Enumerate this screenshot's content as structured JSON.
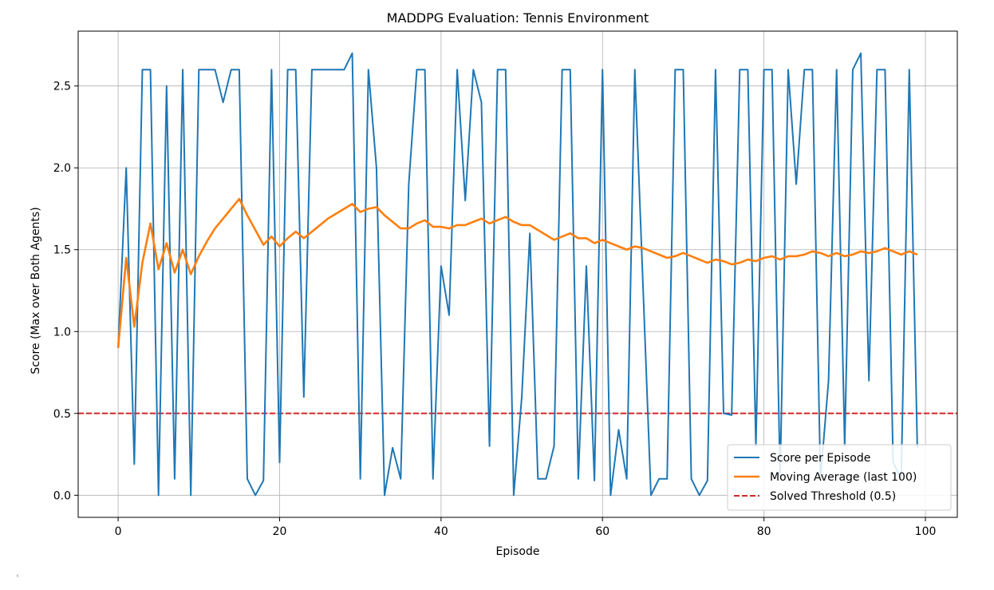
{
  "chart_data": {
    "type": "line",
    "title": "MADDPG Evaluation: Tennis Environment",
    "xlabel": "Episode",
    "ylabel": "Score (Max over Both Agents)",
    "xlim": [
      -4.95,
      103.95
    ],
    "ylim": [
      -0.135,
      2.835
    ],
    "xticks": [
      0,
      20,
      40,
      60,
      80,
      100
    ],
    "yticks": [
      0.0,
      0.5,
      1.0,
      1.5,
      2.0,
      2.5
    ],
    "xtick_labels": [
      "0",
      "20",
      "40",
      "60",
      "80",
      "100"
    ],
    "ytick_labels": [
      "0.0",
      "0.5",
      "1.0",
      "1.5",
      "2.0",
      "2.5"
    ],
    "grid": true,
    "legend_position": "lower-right",
    "series": [
      {
        "name": "Score per Episode",
        "color": "#1f77b4",
        "values": [
          0.9,
          2.0,
          0.19,
          2.6,
          2.6,
          0.0,
          2.5,
          0.1,
          2.6,
          0.0,
          2.6,
          2.6,
          2.6,
          2.4,
          2.6,
          2.6,
          0.1,
          0.0,
          0.09,
          2.6,
          0.2,
          2.6,
          2.6,
          0.6,
          2.6,
          2.6,
          2.6,
          2.6,
          2.6,
          2.7,
          0.1,
          2.6,
          2.0,
          0.0,
          0.29,
          0.1,
          1.9,
          2.6,
          2.6,
          0.1,
          1.4,
          1.1,
          2.6,
          1.8,
          2.6,
          2.4,
          0.3,
          2.6,
          2.6,
          0.0,
          0.6,
          1.6,
          0.1,
          0.1,
          0.3,
          2.6,
          2.6,
          0.1,
          1.4,
          0.09,
          2.6,
          0.0,
          0.4,
          0.1,
          2.6,
          1.3,
          0.0,
          0.1,
          0.1,
          2.6,
          2.6,
          0.1,
          0.0,
          0.09,
          2.6,
          0.5,
          0.49,
          2.6,
          2.6,
          0.3,
          2.6,
          2.6,
          0.1,
          2.6,
          1.9,
          2.6,
          2.6,
          0.1,
          0.7,
          2.6,
          0.3,
          2.6,
          2.7,
          0.7,
          2.6,
          2.6,
          0.2,
          0.1,
          2.6,
          0.29
        ]
      },
      {
        "name": "Moving Average (last 100)",
        "color": "#ff7f0e",
        "values": [
          0.9,
          1.45,
          1.03,
          1.42,
          1.66,
          1.38,
          1.54,
          1.36,
          1.5,
          1.35,
          1.46,
          1.55,
          1.63,
          1.69,
          1.75,
          1.81,
          1.71,
          1.62,
          1.53,
          1.58,
          1.52,
          1.57,
          1.61,
          1.57,
          1.61,
          1.65,
          1.69,
          1.72,
          1.75,
          1.78,
          1.73,
          1.75,
          1.76,
          1.71,
          1.67,
          1.63,
          1.63,
          1.66,
          1.68,
          1.64,
          1.64,
          1.63,
          1.65,
          1.65,
          1.67,
          1.69,
          1.66,
          1.68,
          1.7,
          1.67,
          1.65,
          1.65,
          1.62,
          1.59,
          1.56,
          1.58,
          1.6,
          1.57,
          1.57,
          1.54,
          1.56,
          1.54,
          1.52,
          1.5,
          1.52,
          1.51,
          1.49,
          1.47,
          1.45,
          1.46,
          1.48,
          1.46,
          1.44,
          1.42,
          1.44,
          1.43,
          1.41,
          1.42,
          1.44,
          1.43,
          1.45,
          1.46,
          1.44,
          1.46,
          1.46,
          1.47,
          1.49,
          1.48,
          1.46,
          1.48,
          1.46,
          1.47,
          1.49,
          1.48,
          1.49,
          1.51,
          1.49,
          1.47,
          1.49,
          1.47
        ]
      }
    ],
    "threshold": {
      "name": "Solved Threshold (0.5)",
      "value": 0.5,
      "color": "#d62728",
      "style": "dashed"
    }
  },
  "scroll_marker": "‹"
}
